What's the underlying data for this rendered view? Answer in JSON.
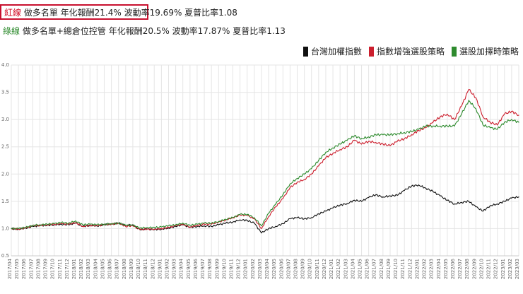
{
  "header": {
    "line1_label": "紅線",
    "line1_text": "做多名單 年化報酬21.4% 波動率19.69% 夏普比率1.08",
    "line2_label": "綠線",
    "line2_text": "做多名單+總倉位控管 年化報酬20.5% 波動率17.87% 夏普比率1.13"
  },
  "colors": {
    "taiex": "#111111",
    "enhanced": "#cc1f2e",
    "timing": "#2e8b2e",
    "grid": "#e5e5e5"
  },
  "chart_data": {
    "type": "line",
    "ylim": [
      0.5,
      4.0
    ],
    "yticks": [
      "0.5",
      "1.0",
      "1.5",
      "2.0",
      "2.5",
      "3.0",
      "3.5",
      "4.0"
    ],
    "legend_position": "top-right",
    "grid": true,
    "x": [
      "2017/04",
      "2017/05",
      "2017/06",
      "2017/07",
      "2017/08",
      "2017/09",
      "2017/10",
      "2017/11",
      "2017/12",
      "2018/01",
      "2018/02",
      "2018/03",
      "2018/04",
      "2018/05",
      "2018/06",
      "2018/07",
      "2018/08",
      "2018/09",
      "2018/10",
      "2018/11",
      "2018/12",
      "2019/01",
      "2019/02",
      "2019/03",
      "2019/04",
      "2019/05",
      "2019/06",
      "2019/07",
      "2019/08",
      "2019/09",
      "2019/10",
      "2019/11",
      "2019/12",
      "2020/01",
      "2020/02",
      "2020/03",
      "2020/04",
      "2020/05",
      "2020/06",
      "2020/07",
      "2020/08",
      "2020/09",
      "2020/10",
      "2020/11",
      "2020/12",
      "2021/01",
      "2021/02",
      "2021/03",
      "2021/04",
      "2021/05",
      "2021/06",
      "2021/07",
      "2021/08",
      "2021/09",
      "2021/10",
      "2021/11",
      "2021/12",
      "2022/01",
      "2022/02",
      "2022/03",
      "2022/04",
      "2022/05",
      "2022/06",
      "2022/07",
      "2022/08",
      "2022/09",
      "2022/10",
      "2022/11",
      "2022/12",
      "2023/01",
      "2023/02",
      "2023/03"
    ],
    "series": [
      {
        "name": "台灣加權指數",
        "color": "#111111",
        "values": [
          1.0,
          0.99,
          1.01,
          1.04,
          1.05,
          1.06,
          1.07,
          1.08,
          1.07,
          1.1,
          1.04,
          1.06,
          1.05,
          1.07,
          1.08,
          1.1,
          1.06,
          1.07,
          0.98,
          0.99,
          0.98,
          0.99,
          1.01,
          1.04,
          1.07,
          1.02,
          1.04,
          1.05,
          1.04,
          1.07,
          1.1,
          1.12,
          1.16,
          1.15,
          1.1,
          0.92,
          1.0,
          1.04,
          1.09,
          1.18,
          1.2,
          1.18,
          1.2,
          1.27,
          1.32,
          1.38,
          1.43,
          1.46,
          1.52,
          1.5,
          1.57,
          1.62,
          1.58,
          1.6,
          1.61,
          1.7,
          1.78,
          1.8,
          1.74,
          1.68,
          1.6,
          1.52,
          1.45,
          1.48,
          1.5,
          1.4,
          1.32,
          1.42,
          1.45,
          1.5,
          1.56,
          1.58
        ]
      },
      {
        "name": "指數增強選股策略",
        "color": "#cc1f2e",
        "values": [
          1.0,
          0.99,
          1.01,
          1.05,
          1.06,
          1.07,
          1.08,
          1.09,
          1.08,
          1.11,
          1.04,
          1.06,
          1.05,
          1.07,
          1.08,
          1.1,
          1.04,
          1.05,
          0.98,
          0.99,
          0.99,
          1.0,
          1.02,
          1.05,
          1.08,
          1.03,
          1.06,
          1.08,
          1.08,
          1.12,
          1.16,
          1.2,
          1.25,
          1.24,
          1.18,
          1.0,
          1.22,
          1.4,
          1.55,
          1.75,
          1.85,
          1.9,
          2.0,
          2.15,
          2.3,
          2.38,
          2.45,
          2.5,
          2.62,
          2.55,
          2.6,
          2.58,
          2.55,
          2.52,
          2.6,
          2.65,
          2.72,
          2.8,
          2.85,
          2.95,
          3.05,
          3.1,
          3.0,
          3.25,
          3.55,
          3.4,
          3.05,
          2.95,
          2.9,
          3.1,
          3.15,
          3.08
        ]
      },
      {
        "name": "選股加擇時策略",
        "color": "#2e8b2e",
        "values": [
          1.0,
          1.0,
          1.02,
          1.06,
          1.07,
          1.08,
          1.09,
          1.11,
          1.1,
          1.14,
          1.07,
          1.08,
          1.07,
          1.08,
          1.09,
          1.1,
          1.06,
          1.06,
          1.01,
          1.02,
          1.02,
          1.03,
          1.05,
          1.07,
          1.1,
          1.06,
          1.08,
          1.1,
          1.1,
          1.13,
          1.17,
          1.2,
          1.26,
          1.26,
          1.2,
          1.05,
          1.28,
          1.45,
          1.62,
          1.82,
          1.92,
          2.0,
          2.1,
          2.25,
          2.4,
          2.48,
          2.55,
          2.62,
          2.7,
          2.65,
          2.68,
          2.72,
          2.72,
          2.72,
          2.74,
          2.76,
          2.78,
          2.82,
          2.88,
          2.88,
          2.88,
          2.88,
          2.88,
          3.1,
          3.35,
          3.2,
          2.9,
          2.85,
          2.82,
          2.95,
          3.0,
          2.95
        ]
      }
    ]
  }
}
